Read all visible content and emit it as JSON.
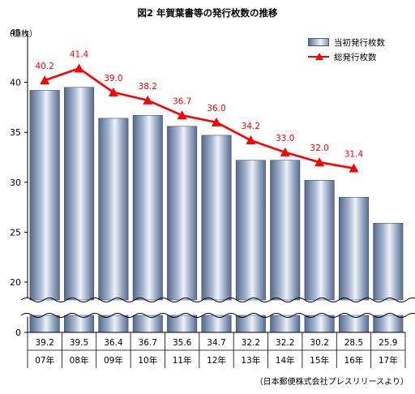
{
  "title": "図2  年賀葉書等の発行枚数の推移",
  "unit_label": "（億枚）",
  "source_note": "（日本郵便株式会社プレスリリースより）",
  "legend": {
    "bar_label": "当初発行枚数",
    "line_label": "総発行枚数"
  },
  "colors": {
    "bar": "#8a9cbc",
    "line": "#ff0000",
    "line_label": "#ff0000"
  },
  "chart_data": {
    "type": "bar",
    "categories": [
      "07年",
      "08年",
      "09年",
      "10年",
      "11年",
      "12年",
      "13年",
      "14年",
      "15年",
      "16年",
      "17年"
    ],
    "series": [
      {
        "name": "当初発行枚数",
        "type": "bar",
        "values": [
          39.2,
          39.5,
          36.4,
          36.7,
          35.6,
          34.7,
          32.2,
          32.2,
          30.2,
          28.5,
          25.9
        ]
      },
      {
        "name": "総発行枚数",
        "type": "line",
        "values": [
          40.2,
          41.4,
          39.0,
          38.2,
          36.7,
          36.0,
          34.2,
          33.0,
          32.0,
          31.4,
          null
        ]
      }
    ],
    "y_ticks": [
      0,
      20,
      25,
      30,
      35,
      40,
      45
    ],
    "ylim": [
      20,
      45
    ],
    "axis_break": true,
    "grid": false,
    "legend_position": "top-right"
  }
}
